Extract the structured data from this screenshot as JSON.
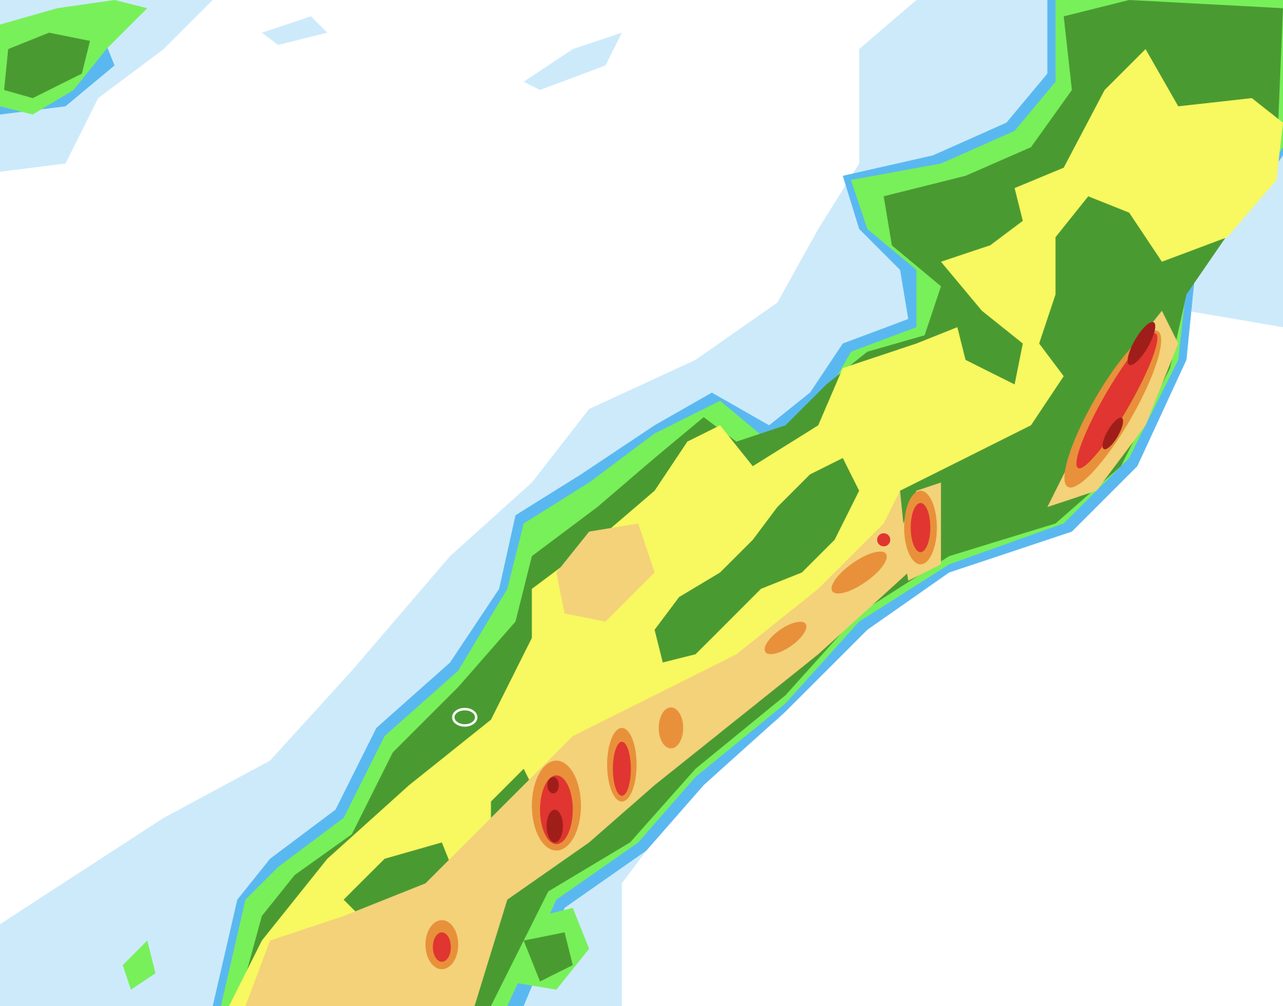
{
  "map": {
    "background": "#ffffff",
    "palette": {
      "light_blue": "#cdeafb",
      "blue": "#5ab8f0",
      "light_green": "#78f05a",
      "green": "#4a9a32",
      "yellow": "#f8f860",
      "tan": "#f3d27a",
      "orange": "#e8913a",
      "red": "#e03530",
      "dark_red": "#a01e1a"
    }
  }
}
